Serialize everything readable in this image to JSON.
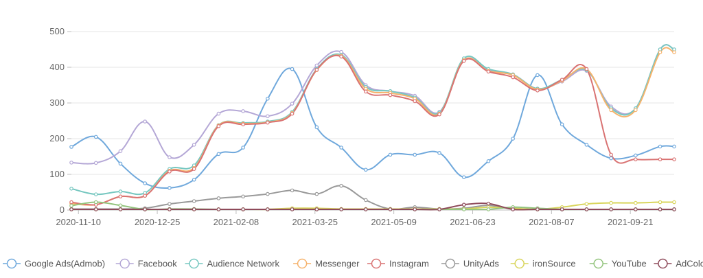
{
  "chart_data": {
    "type": "line",
    "title": "",
    "xlabel": "",
    "ylabel": "",
    "ylim": [
      0,
      500
    ],
    "yticks": [
      0,
      100,
      200,
      300,
      400,
      500
    ],
    "xlim": [
      "2020-11-06",
      "2021-10-16"
    ],
    "xticks": [
      "2020-11-10",
      "2020-12-25",
      "2021-02-08",
      "2021-03-25",
      "2021-05-09",
      "2021-06-23",
      "2021-08-07",
      "2021-09-21"
    ],
    "grid": true,
    "legend_position": "bottom",
    "x": [
      "2020-11-06",
      "2020-11-20",
      "2020-12-04",
      "2020-12-18",
      "2021-01-01",
      "2021-01-15",
      "2021-01-29",
      "2021-02-12",
      "2021-02-26",
      "2021-03-12",
      "2021-03-26",
      "2021-04-09",
      "2021-04-23",
      "2021-05-07",
      "2021-05-21",
      "2021-06-04",
      "2021-06-18",
      "2021-07-02",
      "2021-07-16",
      "2021-07-30",
      "2021-08-13",
      "2021-08-27",
      "2021-09-10",
      "2021-09-24",
      "2021-10-08",
      "2021-10-16"
    ],
    "series": [
      {
        "name": "Google Ads(Admob)",
        "color": "#6fa8dc",
        "values": [
          177,
          205,
          130,
          75,
          62,
          85,
          157,
          175,
          312,
          395,
          232,
          175,
          113,
          155,
          155,
          160,
          92,
          137,
          200,
          378,
          240,
          183,
          145,
          153,
          178,
          178
        ]
      },
      {
        "name": "Facebook",
        "color": "#b4a7d6",
        "values": [
          133,
          132,
          165,
          248,
          148,
          183,
          270,
          277,
          263,
          298,
          405,
          443,
          350,
          333,
          320,
          275,
          420,
          393,
          380,
          340,
          360,
          390,
          290,
          285,
          450,
          450
        ]
      },
      {
        "name": "Audience Network",
        "color": "#76c7c0",
        "values": [
          60,
          44,
          52,
          48,
          115,
          125,
          238,
          244,
          248,
          275,
          395,
          435,
          345,
          333,
          315,
          273,
          425,
          395,
          380,
          340,
          365,
          392,
          285,
          285,
          450,
          450
        ]
      },
      {
        "name": "Messenger",
        "color": "#f6b26b",
        "values": [
          18,
          15,
          38,
          40,
          110,
          118,
          237,
          242,
          246,
          272,
          392,
          432,
          340,
          328,
          312,
          270,
          420,
          390,
          378,
          338,
          362,
          395,
          280,
          280,
          442,
          442
        ]
      },
      {
        "name": "Instagram",
        "color": "#d97373",
        "values": [
          22,
          15,
          38,
          40,
          108,
          115,
          235,
          240,
          245,
          270,
          393,
          430,
          332,
          322,
          305,
          268,
          418,
          388,
          372,
          335,
          365,
          395,
          155,
          142,
          142,
          142
        ]
      },
      {
        "name": "UnityAds",
        "color": "#999999",
        "values": [
          3,
          3,
          3,
          5,
          17,
          25,
          33,
          38,
          45,
          55,
          45,
          68,
          28,
          3,
          8,
          3,
          5,
          13,
          3,
          2,
          2,
          2,
          2,
          2,
          2,
          2
        ]
      },
      {
        "name": "ironSource",
        "color": "#d9d55c",
        "values": [
          2,
          2,
          2,
          2,
          2,
          2,
          2,
          2,
          2,
          5,
          5,
          3,
          3,
          3,
          3,
          3,
          3,
          8,
          5,
          2,
          8,
          17,
          20,
          20,
          22,
          22
        ]
      },
      {
        "name": "YouTube",
        "color": "#93c47d",
        "values": [
          12,
          22,
          13,
          2,
          3,
          3,
          2,
          2,
          2,
          2,
          2,
          2,
          2,
          2,
          2,
          2,
          2,
          2,
          8,
          5,
          2,
          2,
          2,
          2,
          2,
          2
        ]
      },
      {
        "name": "AdColony",
        "color": "#8e4a5a",
        "values": [
          2,
          2,
          2,
          2,
          2,
          2,
          2,
          2,
          2,
          2,
          2,
          2,
          2,
          2,
          2,
          2,
          15,
          18,
          2,
          2,
          2,
          2,
          2,
          2,
          2,
          2
        ]
      }
    ]
  }
}
